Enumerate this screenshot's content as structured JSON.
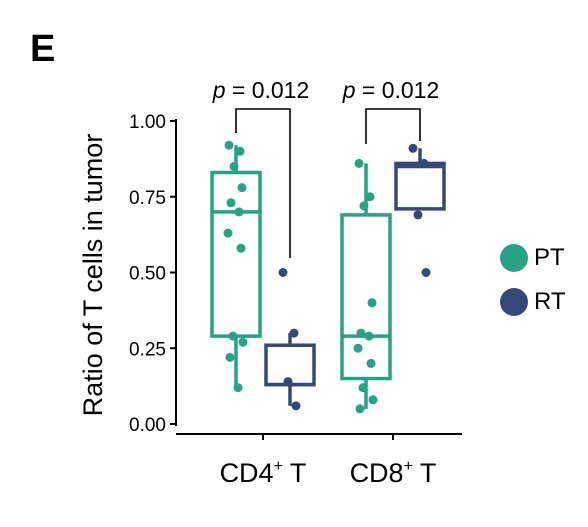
{
  "panel_label": "E",
  "colors": {
    "PT": "#26a383",
    "RT": "#34497a",
    "axis": "#000000"
  },
  "chart_data": {
    "type": "box",
    "ylabel": "Ratio of T cells in tumor",
    "xlabel": "",
    "ylim": [
      0,
      1.0
    ],
    "y_ticks": [
      "0.00",
      "0.25",
      "0.50",
      "0.75",
      "1.00"
    ],
    "categories": [
      {
        "label": "CD4",
        "superscript": "+",
        "suffix": " T"
      },
      {
        "label": "CD8",
        "superscript": "+",
        "suffix": " T"
      }
    ],
    "series": [
      {
        "name": "PT",
        "color": "#26a383",
        "boxes": [
          {
            "category": "CD4+ T",
            "q1": 0.29,
            "median": 0.7,
            "q3": 0.83,
            "whisker_low": 0.12,
            "whisker_high": 0.92,
            "points": [
              0.92,
              0.9,
              0.85,
              0.78,
              0.73,
              0.7,
              0.63,
              0.58,
              0.29,
              0.27,
              0.22,
              0.12
            ]
          },
          {
            "category": "CD8+ T",
            "q1": 0.15,
            "median": 0.29,
            "q3": 0.69,
            "whisker_low": 0.05,
            "whisker_high": 0.86,
            "points": [
              0.86,
              0.75,
              0.72,
              0.4,
              0.3,
              0.29,
              0.25,
              0.2,
              0.12,
              0.08,
              0.05
            ]
          }
        ]
      },
      {
        "name": "RT",
        "color": "#34497a",
        "boxes": [
          {
            "category": "CD4+ T",
            "q1": 0.13,
            "median": 0.13,
            "q3": 0.26,
            "whisker_low": 0.06,
            "whisker_high": 0.3,
            "points": [
              0.5,
              0.3,
              0.14,
              0.06
            ]
          },
          {
            "category": "CD8+ T",
            "q1": 0.71,
            "median": 0.85,
            "q3": 0.86,
            "whisker_low": 0.71,
            "whisker_high": 0.91,
            "points": [
              0.91,
              0.86,
              0.69,
              0.5
            ]
          }
        ]
      }
    ],
    "annotations": [
      {
        "category": "CD4+ T",
        "text_prefix": "p",
        "text_value": " = 0.012"
      },
      {
        "category": "CD8+ T",
        "text_prefix": "p",
        "text_value": " = 0.012"
      }
    ],
    "legend": {
      "position": "right",
      "entries": [
        "PT",
        "RT"
      ]
    }
  }
}
